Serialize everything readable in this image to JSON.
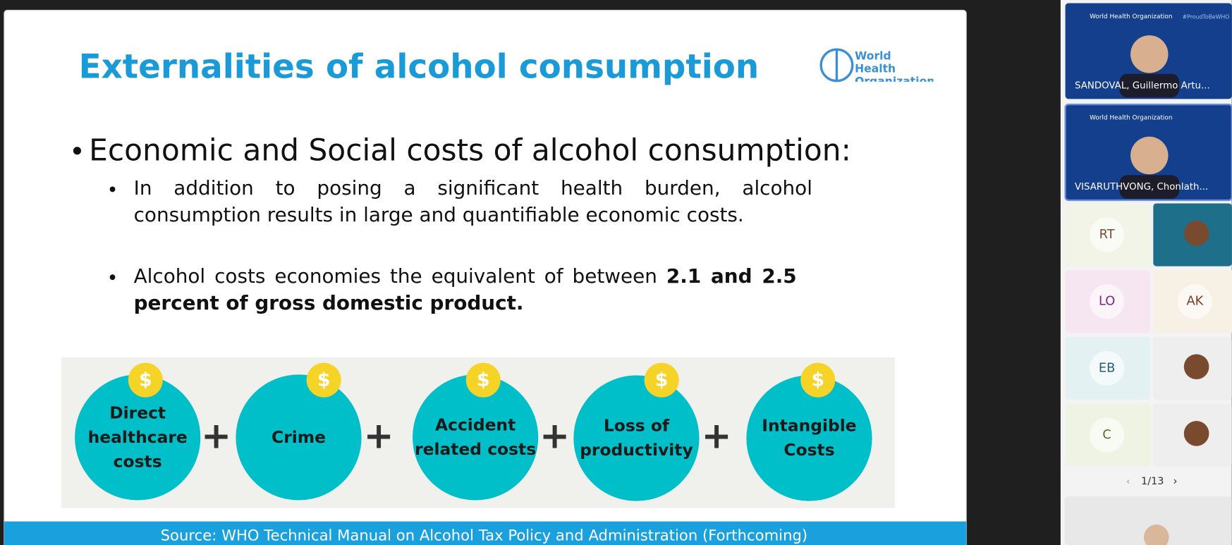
{
  "slide": {
    "title": "Externalities of alcohol consumption",
    "logo": "World Health Organization",
    "heading": "Economic and Social costs of alcohol consumption:",
    "bullets": [
      {
        "text": "In addition to posing a significant health burden, alcohol consumption results in large and quantifiable economic costs."
      },
      {
        "text": "Alcohol costs economies the equivalent of between ",
        "bold": "2.1 and 2.5 percent of gross domestic product."
      }
    ],
    "currency_icon": "$",
    "operator": "+",
    "costs": [
      "Direct healthcare costs",
      "Crime",
      "Accident related costs",
      "Loss of productivity",
      "Intangible Costs"
    ],
    "source": "Source: WHO Technical Manual on Alcohol Tax Policy and Administration (Forthcoming)"
  },
  "participants": {
    "featured": [
      {
        "org": "World Health Organization",
        "tag": "#ProudToBeWHO",
        "name": "SANDOVAL, Guillermo Artu..."
      },
      {
        "org": "World Health Organization",
        "name": "VISARUTHVONG, Chonlath..."
      }
    ],
    "initials": [
      "RT",
      "LO",
      "AK",
      "EB",
      "C"
    ],
    "pager": "1/13"
  }
}
